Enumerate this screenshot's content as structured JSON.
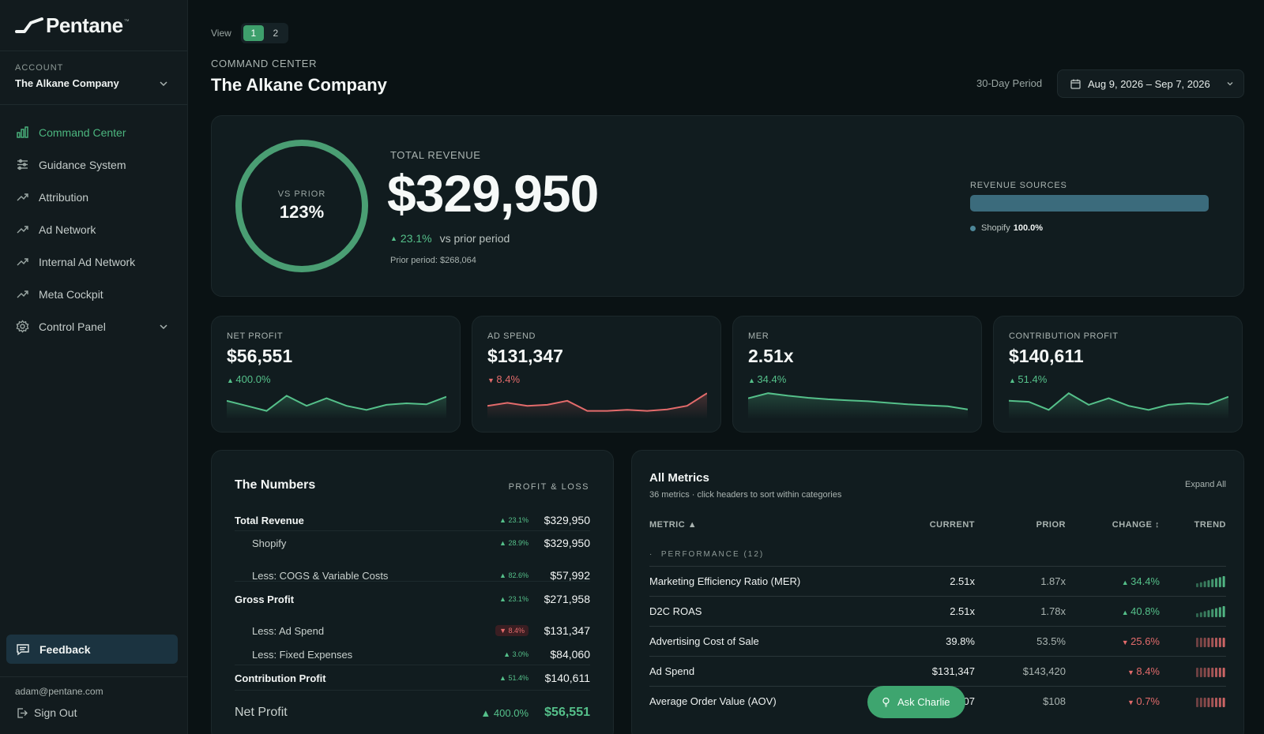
{
  "brand": {
    "name": "Pentane",
    "tm": "™"
  },
  "account": {
    "label": "ACCOUNT",
    "name": "The Alkane Company"
  },
  "nav": [
    {
      "label": "Command Center",
      "icon": "bar-chart-icon",
      "active": true
    },
    {
      "label": "Guidance System",
      "icon": "sliders-icon"
    },
    {
      "label": "Attribution",
      "icon": "trend-up-icon"
    },
    {
      "label": "Ad Network",
      "icon": "trend-up-icon"
    },
    {
      "label": "Internal Ad Network",
      "icon": "trend-up-icon"
    },
    {
      "label": "Meta Cockpit",
      "icon": "trend-up-icon"
    },
    {
      "label": "Control Panel",
      "icon": "gear-icon"
    }
  ],
  "sidebar_footer": {
    "feedback": "Feedback",
    "email": "adam@pentane.com",
    "sign_out": "Sign Out"
  },
  "view": {
    "label": "View",
    "options": [
      "1",
      "2"
    ],
    "selected": "1"
  },
  "header": {
    "crumb": "COMMAND CENTER",
    "title": "The Alkane Company",
    "period_label": "30-Day Period",
    "date_range": "Aug 9, 2026 – Sep 7, 2026"
  },
  "hero": {
    "ring_label": "VS PRIOR",
    "ring_value": "123%",
    "label": "TOTAL REVENUE",
    "value": "$329,950",
    "change": "23.1%",
    "change_dir": "up",
    "vs": "vs prior period",
    "prior": "Prior period: $268,064",
    "sources_label": "REVENUE SOURCES",
    "sources": [
      {
        "name": "Shopify",
        "pct": "100.0%",
        "fraction": 1.0
      }
    ]
  },
  "kpis": [
    {
      "label": "NET PROFIT",
      "value": "$56,551",
      "change": "400.0%",
      "dir": "up",
      "spark": [
        3,
        2,
        1,
        4,
        2,
        3.5,
        2,
        1.2,
        2.2,
        2.5,
        2.3,
        3.8
      ]
    },
    {
      "label": "AD SPEND",
      "value": "$131,347",
      "change": "8.4%",
      "dir": "down",
      "spark": [
        2,
        2.6,
        2,
        2.2,
        3,
        1,
        1,
        1.2,
        1,
        1.3,
        2,
        4.5
      ]
    },
    {
      "label": "MER",
      "value": "2.51x",
      "change": "34.4%",
      "dir": "up",
      "spark": [
        3.5,
        4.5,
        4,
        3.6,
        3.3,
        3.1,
        2.9,
        2.6,
        2.3,
        2.1,
        1.9,
        1.3
      ]
    },
    {
      "label": "CONTRIBUTION PROFIT",
      "value": "$140,611",
      "change": "51.4%",
      "dir": "up",
      "spark": [
        3,
        2.8,
        1.2,
        4.5,
        2.2,
        3.5,
        2,
        1.2,
        2.2,
        2.5,
        2.3,
        3.8
      ]
    }
  ],
  "numbers": {
    "title": "The Numbers",
    "tag": "PROFIT & LOSS",
    "rows": [
      {
        "label": "Total Revenue",
        "pct": "23.1%",
        "dir": "up",
        "amount": "$329,950",
        "style": "bold"
      },
      {
        "label": "Shopify",
        "pct": "28.9%",
        "dir": "up",
        "amount": "$329,950",
        "style": "indent"
      },
      {
        "label": "Less: COGS & Variable Costs",
        "pct": "82.6%",
        "dir": "up",
        "amount": "$57,992",
        "style": "indent"
      },
      {
        "label": "Gross Profit",
        "pct": "23.1%",
        "dir": "up",
        "amount": "$271,958",
        "style": "bold"
      },
      {
        "label": "Less: Ad Spend",
        "pct": "8.4%",
        "dir": "down",
        "amount": "$131,347",
        "style": "indent"
      },
      {
        "label": "Less: Fixed Expenses",
        "pct": "3.0%",
        "dir": "up",
        "amount": "$84,060",
        "style": "indent"
      },
      {
        "label": "Contribution Profit",
        "pct": "51.4%",
        "dir": "up",
        "amount": "$140,611",
        "style": "bold"
      },
      {
        "label": "Net Profit",
        "pct": "400.0%",
        "dir": "up",
        "amount": "$56,551",
        "style": "big"
      }
    ]
  },
  "metrics": {
    "title": "All Metrics",
    "subtitle": "36 metrics · click headers to sort within categories",
    "expand": "Expand All",
    "columns": {
      "metric": "METRIC ▲",
      "current": "CURRENT",
      "prior": "PRIOR",
      "change": "CHANGE ↕",
      "trend": "TREND"
    },
    "group": "PERFORMANCE  (12)",
    "rows": [
      {
        "metric": "Marketing Efficiency Ratio (MER)",
        "current": "2.51x",
        "prior": "1.87x",
        "change": "34.4%",
        "dir": "up"
      },
      {
        "metric": "D2C ROAS",
        "current": "2.51x",
        "prior": "1.78x",
        "change": "40.8%",
        "dir": "up"
      },
      {
        "metric": "Advertising Cost of Sale",
        "current": "39.8%",
        "prior": "53.5%",
        "change": "25.6%",
        "dir": "down"
      },
      {
        "metric": "Ad Spend",
        "current": "$131,347",
        "prior": "$143,420",
        "change": "8.4%",
        "dir": "down"
      },
      {
        "metric": "Average Order Value (AOV)",
        "current": "$107",
        "prior": "$108",
        "change": "0.7%",
        "dir": "down"
      }
    ]
  },
  "ask": {
    "label": "Ask Charlie"
  },
  "colors": {
    "accent": "#4cb67f",
    "down": "#e36b6b",
    "up": "#55c08a"
  }
}
